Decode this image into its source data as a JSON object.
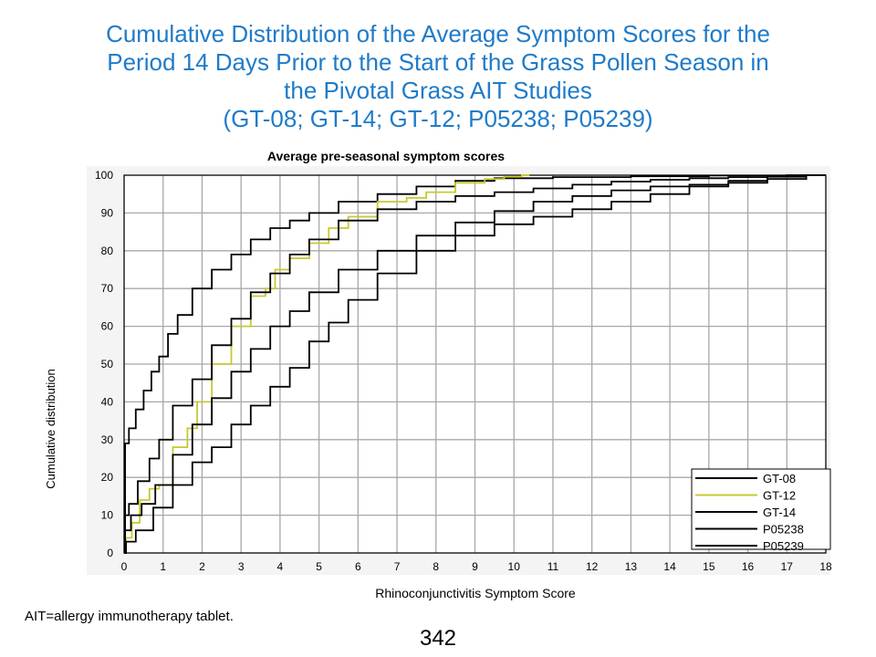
{
  "slide": {
    "title_lines": [
      "Cumulative Distribution of the Average Symptom Scores for the",
      "Period 14 Days Prior to the Start of the Grass Pollen Season in",
      "the Pivotal Grass AIT Studies",
      "(GT-08; GT-14; GT-12; P05238; P05239)"
    ],
    "footnote": "AIT=allergy immunotherapy tablet.",
    "page_number": "342"
  },
  "chart_data": {
    "type": "line",
    "step": true,
    "title": "Average pre-seasonal symptom scores",
    "xlabel": "Rhinoconjunctivitis Symptom Score",
    "ylabel": "Cumulative distribution",
    "xlim": [
      0,
      18
    ],
    "ylim": [
      0,
      100
    ],
    "xticks": [
      0,
      1,
      2,
      3,
      4,
      5,
      6,
      7,
      8,
      9,
      10,
      11,
      12,
      13,
      14,
      15,
      16,
      17,
      18
    ],
    "yticks": [
      0,
      10,
      20,
      30,
      40,
      50,
      60,
      70,
      80,
      90,
      100
    ],
    "grid": true,
    "legend_position": "bottom-right",
    "colors": {
      "black": "#000000",
      "yellow": "#c8c832",
      "grid": "#a8a8a8",
      "plot_bg": "#ffffff"
    },
    "series": [
      {
        "name": "GT-08",
        "color": "#000000",
        "x": [
          0,
          0.05,
          0.2,
          0.4,
          0.6,
          0.8,
          1.0,
          1.25,
          1.5,
          2.0,
          2.5,
          3.0,
          3.5,
          4.0,
          4.5,
          5.0,
          6.0,
          7.0,
          8.0,
          9.0,
          10.0,
          12.0,
          14.0,
          16.0,
          18.0
        ],
        "y": [
          0,
          29,
          33,
          38,
          43,
          48,
          52,
          58,
          63,
          70,
          75,
          79,
          83,
          86,
          88,
          90,
          93,
          95,
          97,
          98.5,
          99.2,
          99.5,
          99.7,
          99.9,
          100
        ]
      },
      {
        "name": "GT-12",
        "color": "#c8c832",
        "x": [
          0,
          0.1,
          0.3,
          0.5,
          0.8,
          1.0,
          1.5,
          1.75,
          2.0,
          2.5,
          3.0,
          3.5,
          3.75,
          4.0,
          4.5,
          5.0,
          5.5,
          6.0,
          7.0,
          7.5,
          8.0,
          9.0,
          9.5,
          10.0,
          10.4
        ],
        "y": [
          0,
          4,
          8,
          14,
          17,
          18,
          28,
          33,
          40,
          50,
          60,
          68,
          70,
          75,
          78,
          82,
          86,
          89,
          93,
          94,
          95.5,
          98,
          99,
          99.6,
          100
        ]
      },
      {
        "name": "GT-14",
        "color": "#000000",
        "x": [
          0,
          0.05,
          0.2,
          0.5,
          0.8,
          1.0,
          1.5,
          2.0,
          2.5,
          3.0,
          3.5,
          4.0,
          4.5,
          5.0,
          6.0,
          7.0,
          8.0,
          9.0,
          10.0,
          11.0,
          12.0,
          13.0,
          14.0,
          15.0,
          16.0,
          17.0,
          18.0
        ],
        "y": [
          0,
          10,
          13,
          19,
          25,
          30,
          39,
          46,
          55,
          62,
          69,
          74,
          79,
          83,
          88,
          91,
          93,
          94.5,
          95.5,
          96.5,
          97.5,
          98.3,
          98.8,
          99.2,
          99.5,
          99.8,
          100
        ]
      },
      {
        "name": "P05238",
        "color": "#000000",
        "x": [
          0,
          0.05,
          0.3,
          0.6,
          1.0,
          1.5,
          2.0,
          2.5,
          3.0,
          3.5,
          4.0,
          4.5,
          5.0,
          6.0,
          7.0,
          8.0,
          9.0,
          10.0,
          11.0,
          12.0,
          13.0,
          14.0,
          15.0,
          16.0,
          17.0,
          18.0
        ],
        "y": [
          0,
          6,
          10,
          13,
          18,
          26,
          34,
          41,
          48,
          54,
          60,
          64,
          69,
          75,
          80,
          84,
          87.5,
          90.5,
          93,
          94.5,
          96,
          97,
          97.5,
          98,
          99,
          100
        ]
      },
      {
        "name": "P05239",
        "color": "#000000",
        "x": [
          0,
          0.1,
          0.5,
          1.0,
          1.5,
          2.0,
          2.5,
          3.0,
          3.5,
          4.0,
          4.5,
          5.0,
          5.5,
          6.0,
          7.0,
          8.0,
          9.0,
          10.0,
          11.0,
          12.0,
          13.0,
          14.0,
          15.0,
          16.0,
          17.0,
          18.0
        ],
        "y": [
          0,
          3,
          6,
          12,
          18,
          24,
          28,
          34,
          39,
          44,
          49,
          56,
          61,
          67,
          74,
          80,
          84,
          87,
          89,
          91,
          93,
          95,
          97,
          98.5,
          99.6,
          100
        ]
      }
    ]
  }
}
